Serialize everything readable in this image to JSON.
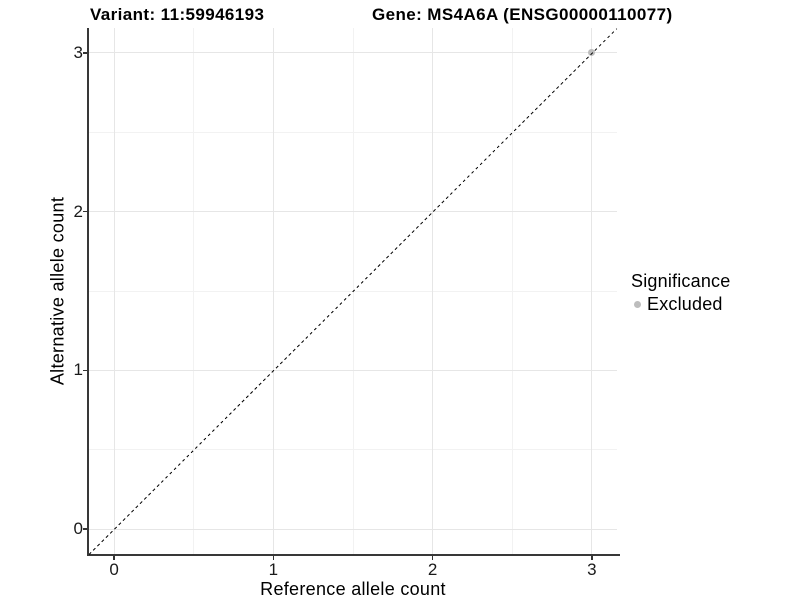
{
  "chart_data": {
    "type": "scatter",
    "title_left": "Variant: 11:59946193",
    "title_right": "Gene: MS4A6A (ENSG00000110077)",
    "xlabel": "Reference allele count",
    "ylabel": "Alternative allele count",
    "xlim": [
      -0.1575,
      3.1575
    ],
    "ylim": [
      -0.1575,
      3.1575
    ],
    "x_ticks": [
      0,
      1,
      2,
      3
    ],
    "y_ticks": [
      0,
      1,
      2,
      3
    ],
    "x_minor_ticks": [
      0.5,
      1.5,
      2.5
    ],
    "y_minor_ticks": [
      0.5,
      1.5,
      2.5
    ],
    "grid": "major+minor",
    "points": [
      {
        "x": 3,
        "y": 3,
        "significance": "Excluded"
      }
    ],
    "reference_line": {
      "kind": "identity",
      "slope": 1,
      "intercept": 0,
      "style": "dashed",
      "color": "#000000"
    },
    "legend": {
      "title": "Significance",
      "position": "right",
      "items": [
        {
          "label": "Excluded",
          "color": "#bdbdbd",
          "marker": "circle"
        }
      ]
    },
    "style": {
      "point_color": "#bdbdbd",
      "point_diameter": 7,
      "grid_major_color": "#e6e6e6",
      "grid_minor_color": "#f2f2f2",
      "axis_line_color": "#383838",
      "tick_color": "#333333",
      "text_color": "#000000",
      "background": "#ffffff"
    }
  }
}
